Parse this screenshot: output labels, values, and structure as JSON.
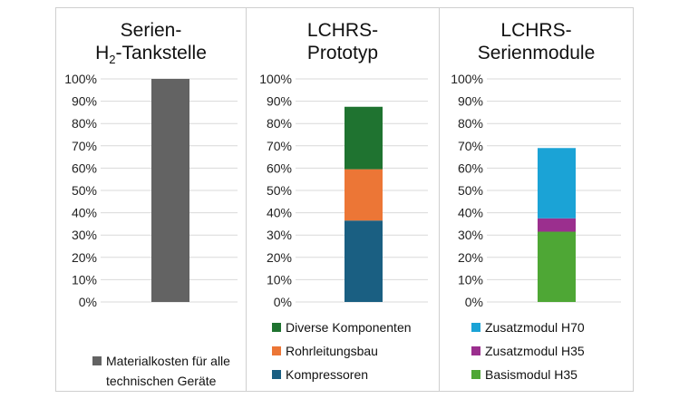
{
  "chart_data": [
    {
      "type": "bar",
      "stacked": true,
      "title_main": "Serien-",
      "title_prefix": "H",
      "title_sub": "2",
      "title_suffix": "-Tankstelle",
      "yticks": [
        "0%",
        "10%",
        "20%",
        "30%",
        "40%",
        "50%",
        "60%",
        "70%",
        "80%",
        "90%",
        "100%"
      ],
      "ylim": [
        0,
        100
      ],
      "grid": true,
      "series": [
        {
          "name": "Materialkosten für alle technischen Geräte",
          "name_line1": "Materialkosten für alle",
          "name_line2": "technischen Geräte",
          "value": 100,
          "color": "#636363"
        }
      ]
    },
    {
      "type": "bar",
      "stacked": true,
      "title_line1": "LCHRS-",
      "title_line2": "Prototyp",
      "yticks": [
        "0%",
        "10%",
        "20%",
        "30%",
        "40%",
        "50%",
        "60%",
        "70%",
        "80%",
        "90%",
        "100%"
      ],
      "ylim": [
        0,
        100
      ],
      "grid": true,
      "series": [
        {
          "name": "Kompressoren",
          "value": 36.5,
          "color": "#1a5f82"
        },
        {
          "name": "Rohrleitungsbau",
          "value": 23,
          "color": "#ec7636"
        },
        {
          "name": "Diverse Komponenten",
          "value": 28,
          "color": "#1f7330"
        }
      ]
    },
    {
      "type": "bar",
      "stacked": true,
      "title_line1": "LCHRS-",
      "title_line2": "Serienmodule",
      "yticks": [
        "0%",
        "10%",
        "20%",
        "30%",
        "40%",
        "50%",
        "60%",
        "70%",
        "80%",
        "90%",
        "100%"
      ],
      "ylim": [
        0,
        100
      ],
      "grid": true,
      "series": [
        {
          "name": "Basismodul H35",
          "value": 31.5,
          "color": "#4ea735"
        },
        {
          "name": "Zusatzmodul H35",
          "value": 6,
          "color": "#9b2f8e"
        },
        {
          "name": "Zusatzmodul H70",
          "value": 31.5,
          "color": "#1ba3d6"
        }
      ]
    }
  ]
}
